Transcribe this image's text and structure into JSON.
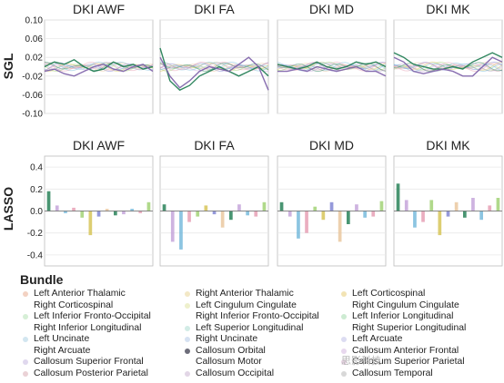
{
  "chart_data": [
    {
      "type": "line",
      "panel_row": "SGL",
      "ylabel": "SGL",
      "ylim": [
        -0.1,
        0.1
      ],
      "yticks": [
        -0.1,
        -0.06,
        -0.02,
        0.02,
        0.06,
        0.1
      ],
      "grid": true,
      "panels": [
        {
          "title": "DKI AWF",
          "series": [
            {
              "values": [
                0.0,
                0.01,
                0.005,
                0.015,
                0.0,
                -0.01,
                -0.005,
                0.01,
                0.0,
                0.005,
                -0.005,
                0.0
              ]
            },
            {
              "values": [
                -0.01,
                -0.005,
                -0.015,
                -0.02,
                -0.01,
                0.0,
                0.005,
                -0.005,
                -0.01,
                0.0,
                0.005,
                -0.01
              ]
            }
          ]
        },
        {
          "title": "DKI FA",
          "series": [
            {
              "values": [
                0.04,
                -0.03,
                -0.05,
                -0.04,
                -0.02,
                -0.01,
                0.0,
                -0.01,
                -0.02,
                -0.01,
                0.0,
                -0.02
              ]
            },
            {
              "values": [
                0.02,
                -0.02,
                -0.045,
                -0.03,
                -0.01,
                0.0,
                -0.005,
                -0.01,
                0.005,
                0.02,
                0.0,
                -0.05
              ]
            }
          ]
        },
        {
          "title": "DKI MD",
          "series": [
            {
              "values": [
                0.005,
                0.0,
                -0.005,
                0.0,
                0.01,
                0.0,
                -0.005,
                0.0,
                0.01,
                0.005,
                0.01,
                0.0
              ]
            },
            {
              "values": [
                -0.01,
                -0.01,
                -0.005,
                -0.01,
                0.0,
                -0.005,
                -0.01,
                -0.005,
                0.0,
                -0.01,
                -0.01,
                -0.02
              ]
            }
          ]
        },
        {
          "title": "DKI MK",
          "series": [
            {
              "values": [
                0.03,
                0.02,
                0.005,
                0.0,
                -0.005,
                -0.005,
                0.0,
                -0.005,
                0.01,
                0.02,
                0.03,
                0.02
              ]
            },
            {
              "values": [
                0.02,
                0.01,
                -0.01,
                -0.015,
                -0.01,
                -0.005,
                -0.01,
                -0.02,
                -0.02,
                0.0,
                0.02,
                0.01
              ]
            }
          ]
        }
      ]
    },
    {
      "type": "bar",
      "panel_row": "LASSO",
      "ylabel": "LASSO",
      "ylim": [
        -0.5,
        0.5
      ],
      "yticks": [
        -0.4,
        -0.2,
        0.0,
        0.2,
        0.4
      ],
      "grid": true,
      "panels": [
        {
          "title": "DKI AWF",
          "values": [
            0.18,
            0.05,
            -0.02,
            0.03,
            -0.06,
            -0.22,
            -0.05,
            0.02,
            -0.04,
            -0.03,
            0.02,
            -0.02,
            0.08
          ]
        },
        {
          "title": "DKI FA",
          "values": [
            0.06,
            -0.28,
            -0.35,
            -0.1,
            -0.05,
            0.05,
            -0.03,
            -0.15,
            -0.08,
            0.06,
            -0.04,
            -0.05,
            0.08
          ]
        },
        {
          "title": "DKI MD",
          "values": [
            0.08,
            -0.05,
            -0.25,
            -0.2,
            0.04,
            -0.08,
            0.08,
            -0.28,
            -0.12,
            0.06,
            -0.06,
            -0.05,
            0.09
          ]
        },
        {
          "title": "DKI MK",
          "values": [
            0.25,
            0.1,
            -0.15,
            -0.1,
            0.1,
            -0.22,
            -0.05,
            0.08,
            -0.06,
            0.12,
            -0.08,
            0.05,
            0.12
          ]
        }
      ]
    }
  ],
  "legend": {
    "title": "Bundle",
    "items": [
      {
        "label": "Left Anterior Thalamic",
        "color": "#f3d2c2"
      },
      {
        "label": "Right Anterior Thalamic",
        "color": "#f3e8c6"
      },
      {
        "label": "Left Corticospinal",
        "color": "#f2e3b4"
      },
      {
        "label": "Right Corticospinal",
        "color": "#ffffff"
      },
      {
        "label": "Left Cingulum Cingulate",
        "color": "#eef0cc"
      },
      {
        "label": "Right Cingulum Cingulate",
        "color": "#ffffff"
      },
      {
        "label": "Left Inferior Fronto-Occipital",
        "color": "#d6efd6"
      },
      {
        "label": "Right Inferior Fronto-Occipital",
        "color": "#ffffff"
      },
      {
        "label": "Left Inferior Longitudinal",
        "color": "#cdebd2"
      },
      {
        "label": "Right Inferior Longitudinal",
        "color": "#ffffff"
      },
      {
        "label": "Left Superior Longitudinal",
        "color": "#d2ece6"
      },
      {
        "label": "Right Superior Longitudinal",
        "color": "#ffffff"
      },
      {
        "label": "Left Uncinate",
        "color": "#d2e6f0"
      },
      {
        "label": "Right Uncinate",
        "color": "#d6e2f2"
      },
      {
        "label": "Left Arcuate",
        "color": "#dcdcf2"
      },
      {
        "label": "Right Arcuate",
        "color": "#ffffff"
      },
      {
        "label": "Callosum Orbital",
        "color": "#6d6d7a"
      },
      {
        "label": "Callosum Anterior Frontal",
        "color": "#e8d8ee"
      },
      {
        "label": "Callosum Superior Frontal",
        "color": "#e0d8ee"
      },
      {
        "label": "Callosum Motor",
        "color": "#ffffff"
      },
      {
        "label": "Callosum Superior Parietal",
        "color": "#e6d2e2"
      },
      {
        "label": "Callosum Posterior Parietal",
        "color": "#ead2d6"
      },
      {
        "label": "Callosum Occipital",
        "color": "#e2d6e6"
      },
      {
        "label": "Callosum Temporal",
        "color": "#d8d8d8"
      }
    ]
  },
  "colors": {
    "panel_bg": "#ffffff",
    "grid": "#e8e8e8",
    "axis": "#bdbdbd",
    "series_palette": [
      "#1b7a4f",
      "#c2a0d8",
      "#6fb7d9",
      "#e59ab0",
      "#9ccf6e",
      "#d4c24f",
      "#7a7fd1",
      "#e8c49a"
    ]
  },
  "watermark": "思影科技"
}
